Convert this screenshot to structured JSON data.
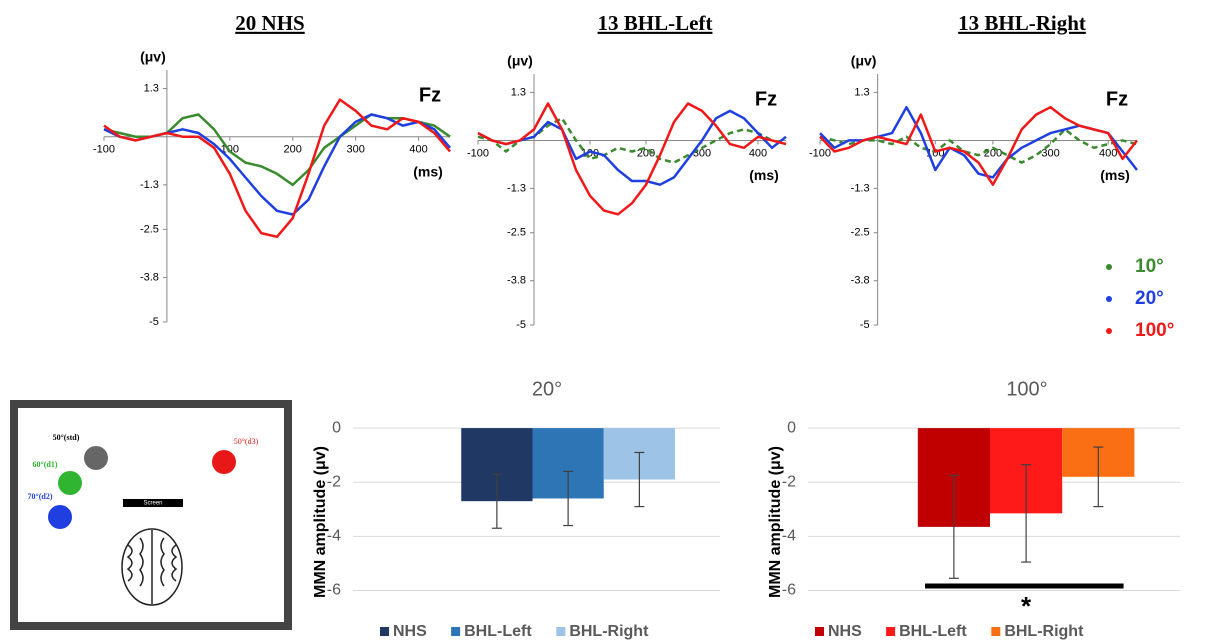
{
  "chart_data": [
    {
      "type": "line",
      "title": "20 NHS",
      "y_label": "(μv)",
      "x_label": "(ms)",
      "annotation": "Fz",
      "x": [
        -100,
        -75,
        -50,
        -25,
        0,
        25,
        50,
        75,
        100,
        125,
        150,
        175,
        200,
        225,
        250,
        275,
        300,
        325,
        350,
        375,
        400,
        425,
        450
      ],
      "xlim": [
        -100,
        450
      ],
      "ylim": [
        -5,
        1.8
      ],
      "xticks": [
        -100,
        100,
        200,
        300,
        400
      ],
      "yticks": [
        1.3,
        -1.3,
        -2.5,
        -3.8,
        -5
      ],
      "series": [
        {
          "color": "#3a8a2e",
          "values": [
            0.2,
            0.1,
            0,
            0,
            0.1,
            0.5,
            0.6,
            0.2,
            -0.4,
            -0.7,
            -0.8,
            -1.0,
            -1.3,
            -0.9,
            -0.3,
            0,
            0.3,
            0.6,
            0.5,
            0.5,
            0.4,
            0.3,
            0
          ]
        },
        {
          "color": "#1f3fe0",
          "values": [
            0.2,
            0,
            -0.1,
            0,
            0.1,
            0.2,
            0.1,
            -0.2,
            -0.6,
            -1.1,
            -1.6,
            -2.0,
            -2.1,
            -1.7,
            -0.8,
            0,
            0.4,
            0.6,
            0.5,
            0.3,
            0.4,
            0.2,
            -0.3
          ]
        },
        {
          "color": "#f01818",
          "values": [
            0.3,
            0,
            -0.1,
            0,
            0.1,
            0,
            0,
            -0.3,
            -1.0,
            -2.0,
            -2.6,
            -2.7,
            -2.2,
            -1.0,
            0.3,
            1.0,
            0.7,
            0.3,
            0.2,
            0.5,
            0.4,
            0.1,
            -0.4
          ]
        }
      ]
    },
    {
      "type": "line",
      "title": "13 BHL-Left",
      "y_label": "(μv)",
      "x_label": "(ms)",
      "annotation": "Fz",
      "x": [
        -100,
        -75,
        -50,
        -25,
        0,
        25,
        50,
        75,
        100,
        125,
        150,
        175,
        200,
        225,
        250,
        275,
        300,
        325,
        350,
        375,
        400,
        425,
        450
      ],
      "xlim": [
        -100,
        450
      ],
      "ylim": [
        -5,
        1.8
      ],
      "xticks": [
        -100,
        100,
        200,
        300,
        400
      ],
      "yticks": [
        1.3,
        -1.3,
        -2.5,
        -3.8,
        -5
      ],
      "series": [
        {
          "color": "#3a8a2e",
          "dashed": true,
          "values": [
            0.1,
            0,
            -0.3,
            0,
            0.1,
            0.4,
            0.6,
            0,
            -0.5,
            -0.4,
            -0.2,
            -0.3,
            -0.2,
            -0.5,
            -0.6,
            -0.4,
            -0.2,
            0,
            0.2,
            0.3,
            0.2,
            0,
            -0.1
          ]
        },
        {
          "color": "#1f3fe0",
          "values": [
            0.2,
            0,
            -0.1,
            0,
            0.1,
            0.5,
            0.3,
            -0.5,
            -0.3,
            -0.4,
            -0.8,
            -1.1,
            -1.1,
            -1.2,
            -1.0,
            -0.5,
            0,
            0.6,
            0.8,
            0.6,
            0.2,
            -0.2,
            0.1
          ]
        },
        {
          "color": "#f01818",
          "values": [
            0.2,
            0,
            -0.1,
            0,
            0.3,
            1.0,
            0.3,
            -0.8,
            -1.5,
            -1.9,
            -2.0,
            -1.7,
            -1.2,
            -0.4,
            0.5,
            1.0,
            0.8,
            0.4,
            -0.1,
            -0.2,
            0.1,
            0,
            -0.1
          ]
        }
      ]
    },
    {
      "type": "line",
      "title": "13 BHL-Right",
      "y_label": "(μv)",
      "x_label": "(ms)",
      "annotation": "Fz",
      "x": [
        -100,
        -75,
        -50,
        -25,
        0,
        25,
        50,
        75,
        100,
        125,
        150,
        175,
        200,
        225,
        250,
        275,
        300,
        325,
        350,
        375,
        400,
        425,
        450
      ],
      "xlim": [
        -100,
        450
      ],
      "ylim": [
        -5,
        1.8
      ],
      "xticks": [
        -100,
        100,
        200,
        300,
        400
      ],
      "yticks": [
        1.3,
        -1.3,
        -2.5,
        -3.8,
        -5
      ],
      "legend": "right",
      "series": [
        {
          "name": "10°",
          "color": "#3a8a2e",
          "dashed": true,
          "values": [
            0.1,
            0,
            -0.1,
            0,
            0,
            -0.1,
            0.1,
            -0.2,
            -0.3,
            0,
            -0.3,
            -0.4,
            -0.2,
            -0.4,
            -0.6,
            -0.4,
            -0.1,
            0.3,
            0,
            -0.2,
            -0.1,
            0,
            -0.1
          ]
        },
        {
          "name": "20°",
          "color": "#1f3fe0",
          "values": [
            0.2,
            -0.2,
            0,
            0,
            0.1,
            0.2,
            0.9,
            0.2,
            -0.8,
            -0.2,
            -0.4,
            -0.9,
            -1.0,
            -0.5,
            -0.2,
            0,
            0.2,
            0.3,
            0.4,
            0.3,
            0.2,
            -0.3,
            -0.8
          ]
        },
        {
          "name": "100°",
          "color": "#f01818",
          "values": [
            0.1,
            -0.3,
            -0.2,
            0,
            0.1,
            0,
            -0.1,
            0.7,
            -0.3,
            -0.2,
            -0.3,
            -0.6,
            -1.2,
            -0.5,
            0.3,
            0.7,
            0.9,
            0.6,
            0.4,
            0.3,
            0.2,
            -0.5,
            0
          ]
        }
      ]
    },
    {
      "type": "bar",
      "title": "20°",
      "y_label": "MMN amplitude (μv)",
      "categories": [
        null
      ],
      "ylim": [
        -6.5,
        0.3
      ],
      "yticks": [
        0,
        -2,
        -4,
        -6
      ],
      "grid": true,
      "legend": "bottom",
      "series": [
        {
          "name": "NHS",
          "color": "#203864",
          "values": [
            -2.7
          ],
          "errors": [
            1.0
          ]
        },
        {
          "name": "BHL-Left",
          "color": "#2e75b6",
          "values": [
            -2.6
          ],
          "errors": [
            1.0
          ]
        },
        {
          "name": "BHL-Right",
          "color": "#9dc3e6",
          "values": [
            -1.9
          ],
          "errors": [
            1.0
          ]
        }
      ]
    },
    {
      "type": "bar",
      "title": "100°",
      "y_label": "MMN amplitude (μv)",
      "categories": [
        null
      ],
      "annotation": "*",
      "ylim": [
        -6.5,
        0.3
      ],
      "yticks": [
        0,
        -2,
        -4,
        -6
      ],
      "grid": true,
      "legend": "bottom",
      "series": [
        {
          "name": "NHS",
          "color": "#c00000",
          "values": [
            -3.65
          ],
          "errors": [
            1.9
          ]
        },
        {
          "name": "BHL-Left",
          "color": "#ff1a1a",
          "values": [
            -3.15
          ],
          "errors": [
            1.8
          ]
        },
        {
          "name": "BHL-Right",
          "color": "#fa6f13",
          "values": [
            -1.8
          ],
          "errors": [
            1.1
          ]
        }
      ]
    }
  ],
  "diagram": {
    "labels": [
      "50°(std)",
      "60°(d1)",
      "70°(d2)",
      "50°(d3)",
      "Screen"
    ]
  }
}
